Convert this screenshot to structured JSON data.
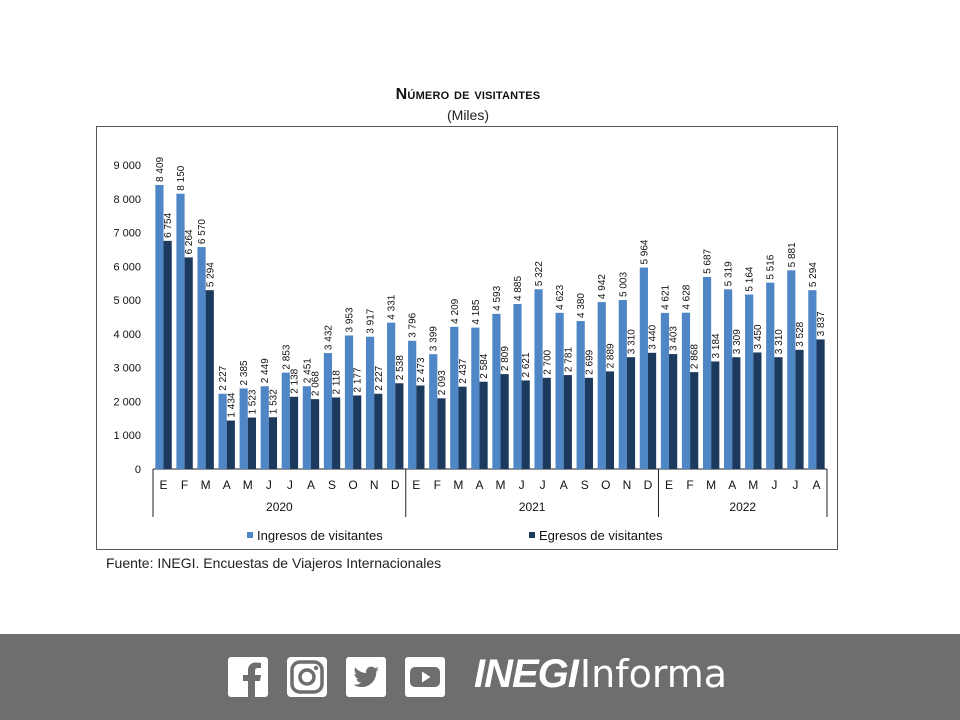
{
  "header": {
    "title": "Número de visitantes",
    "subtitle": "(Miles)"
  },
  "source": "Fuente: INEGI. Encuestas de Viajeros Internacionales",
  "footer": {
    "brand_bold": "INEGI",
    "brand_light": "Informa",
    "icons": [
      "facebook-icon",
      "instagram-icon",
      "twitter-icon",
      "youtube-icon"
    ],
    "background": "#6e6e70"
  },
  "chart_data": {
    "type": "bar",
    "ylim": [
      0,
      9000
    ],
    "yticks": [
      0,
      1000,
      2000,
      3000,
      4000,
      5000,
      6000,
      7000,
      8000,
      9000
    ],
    "ytick_labels": [
      "0",
      "1 000",
      "2 000",
      "3 000",
      "4 000",
      "5 000",
      "6 000",
      "7 000",
      "8 000",
      "9 000"
    ],
    "categories": [
      "E",
      "F",
      "M",
      "A",
      "M",
      "J",
      "J",
      "A",
      "S",
      "O",
      "N",
      "D",
      "E",
      "F",
      "M",
      "A",
      "M",
      "J",
      "J",
      "A",
      "S",
      "O",
      "N",
      "D",
      "E",
      "F",
      "M",
      "A",
      "M",
      "J",
      "J",
      "A"
    ],
    "year_groups": [
      {
        "label": "2020",
        "start": 0,
        "count": 12
      },
      {
        "label": "2021",
        "start": 12,
        "count": 12
      },
      {
        "label": "2022",
        "start": 24,
        "count": 8
      }
    ],
    "legend_position": "bottom",
    "grid": false,
    "series": [
      {
        "name": "Ingresos de visitantes",
        "color": "#4f86c6",
        "values": [
          8409,
          8150,
          6570,
          2227,
          2385,
          2449,
          2853,
          2451,
          3432,
          3953,
          3917,
          4331,
          3796,
          3399,
          4209,
          4185,
          4593,
          4885,
          5322,
          4623,
          4380,
          4942,
          5003,
          5964,
          4621,
          4628,
          5687,
          5319,
          5164,
          5516,
          5881,
          5294
        ],
        "labels": [
          "8 409",
          "8 150",
          "6 570",
          "2 227",
          "2 385",
          "2 449",
          "2 853",
          "2 451",
          "3 432",
          "3 953",
          "3 917",
          "4 331",
          "3 796",
          "3 399",
          "4 209",
          "4 185",
          "4 593",
          "4 885",
          "5 322",
          "4 623",
          "4 380",
          "4 942",
          "5 003",
          "5 964",
          "4 621",
          "4 628",
          "5 687",
          "5 319",
          "5 164",
          "5 516",
          "5 881",
          "5 294"
        ]
      },
      {
        "name": "Egresos de visitantes",
        "color": "#1c3a5e",
        "values": [
          6754,
          6264,
          5294,
          1434,
          1523,
          1532,
          2138,
          2068,
          2118,
          2177,
          2227,
          2538,
          2473,
          2093,
          2437,
          2584,
          2809,
          2621,
          2700,
          2781,
          2699,
          2889,
          3310,
          3440,
          3403,
          2868,
          3184,
          3309,
          3450,
          3310,
          3528,
          3837
        ],
        "labels": [
          "6 754",
          "6 264",
          "5 294",
          "1 434",
          "1 523",
          "1 532",
          "2 138",
          "2 068",
          "2 118",
          "2 177",
          "2 227",
          "2 538",
          "2 473",
          "2 093",
          "2 437",
          "2 584",
          "2 809",
          "2 621",
          "2 700",
          "2 781",
          "2 699",
          "2 889",
          "3 310",
          "3 440",
          "3 403",
          "2 868",
          "3 184",
          "3 309",
          "3 450",
          "3 310",
          "3 528",
          "3 837"
        ]
      }
    ]
  }
}
